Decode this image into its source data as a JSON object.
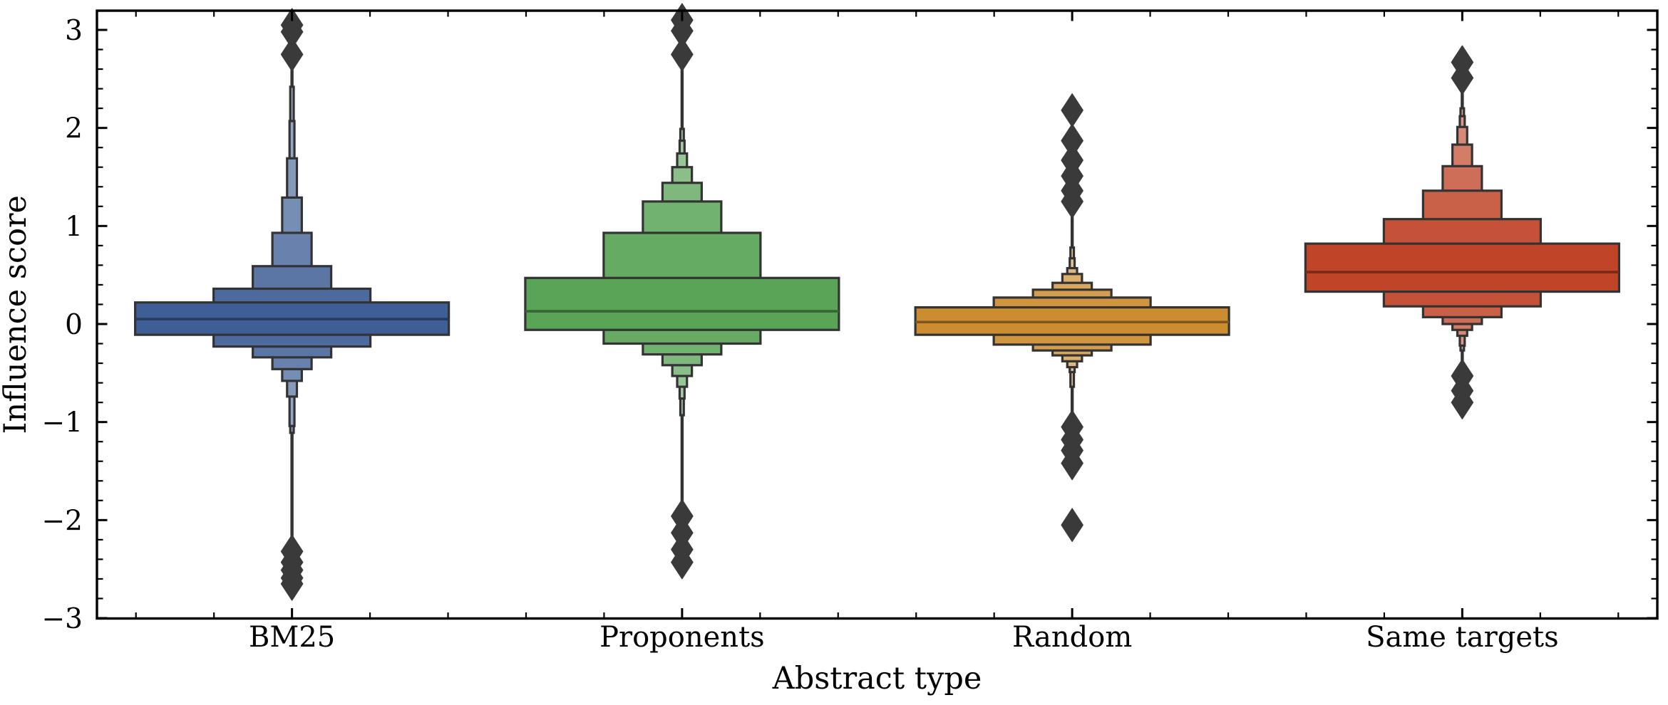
{
  "figure": {
    "background": "#ffffff",
    "plot_border_color": "#000000",
    "tick_color": "#000000",
    "box_edge_color": "#333333",
    "whisker_color": "#333333",
    "flier_color": "#3a3a3a"
  },
  "chart_data": {
    "type": "boxen",
    "title": "",
    "xlabel": "Abstract type",
    "ylabel": "Influence score",
    "categories": [
      "BM25",
      "Proponents",
      "Random",
      "Same targets"
    ],
    "ylim": [
      -3,
      3.2
    ],
    "y_major_ticks": [
      3,
      2,
      1,
      0,
      -1,
      -2,
      -3
    ],
    "y_major_tick_labels": [
      "3",
      "2",
      "1",
      "0",
      "−1",
      "−2",
      "−3"
    ],
    "y_minor_tick_step": 0.2,
    "x_minor_tick_step": 0.2,
    "grid": "off",
    "legend": "none",
    "series": [
      {
        "name": "BM25",
        "color": "#3e5e95",
        "median": 0.05,
        "levels": [
          [
            -0.11,
            0.22
          ],
          [
            -0.23,
            0.36
          ],
          [
            -0.34,
            0.59
          ],
          [
            -0.46,
            0.93
          ],
          [
            -0.58,
            1.29
          ],
          [
            -0.74,
            1.69
          ],
          [
            -1.04,
            2.07
          ],
          [
            -1.11,
            2.42
          ]
        ],
        "whiskers": [
          -2.23,
          2.61
        ],
        "outliers": [
          3.05,
          2.98,
          2.75,
          -2.32,
          -2.43,
          -2.51,
          -2.59,
          -2.65
        ]
      },
      {
        "name": "Proponents",
        "color": "#59a457",
        "median": 0.13,
        "levels": [
          [
            -0.06,
            0.47
          ],
          [
            -0.2,
            0.93
          ],
          [
            -0.31,
            1.25
          ],
          [
            -0.42,
            1.44
          ],
          [
            -0.53,
            1.6
          ],
          [
            -0.64,
            1.74
          ],
          [
            -0.76,
            1.87
          ],
          [
            -0.93,
            1.99
          ]
        ],
        "whiskers": [
          -1.85,
          2.63
        ],
        "outliers": [
          3.1,
          2.99,
          2.75,
          -1.96,
          -2.13,
          -2.3,
          -2.43
        ]
      },
      {
        "name": "Random",
        "color": "#cc8d31",
        "median": 0.02,
        "levels": [
          [
            -0.11,
            0.17
          ],
          [
            -0.21,
            0.27
          ],
          [
            -0.27,
            0.35
          ],
          [
            -0.32,
            0.42
          ],
          [
            -0.38,
            0.51
          ],
          [
            -0.44,
            0.57
          ],
          [
            -0.49,
            0.67
          ],
          [
            -0.64,
            0.78
          ]
        ],
        "whiskers": [
          -1.02,
          1.16
        ],
        "outliers": [
          2.18,
          1.87,
          1.67,
          1.51,
          1.36,
          1.25,
          -1.05,
          -1.18,
          -1.29,
          -1.42,
          -2.05
        ]
      },
      {
        "name": "Same targets",
        "color": "#c04428",
        "median": 0.53,
        "levels": [
          [
            0.33,
            0.82
          ],
          [
            0.18,
            1.07
          ],
          [
            0.07,
            1.36
          ],
          [
            0.0,
            1.61
          ],
          [
            -0.06,
            1.83
          ],
          [
            -0.12,
            2.01
          ],
          [
            -0.22,
            2.12
          ],
          [
            -0.27,
            2.2
          ]
        ],
        "whiskers": [
          -0.41,
          2.42
        ],
        "outliers": [
          2.67,
          2.51,
          -0.53,
          -0.68,
          -0.8
        ]
      }
    ]
  }
}
